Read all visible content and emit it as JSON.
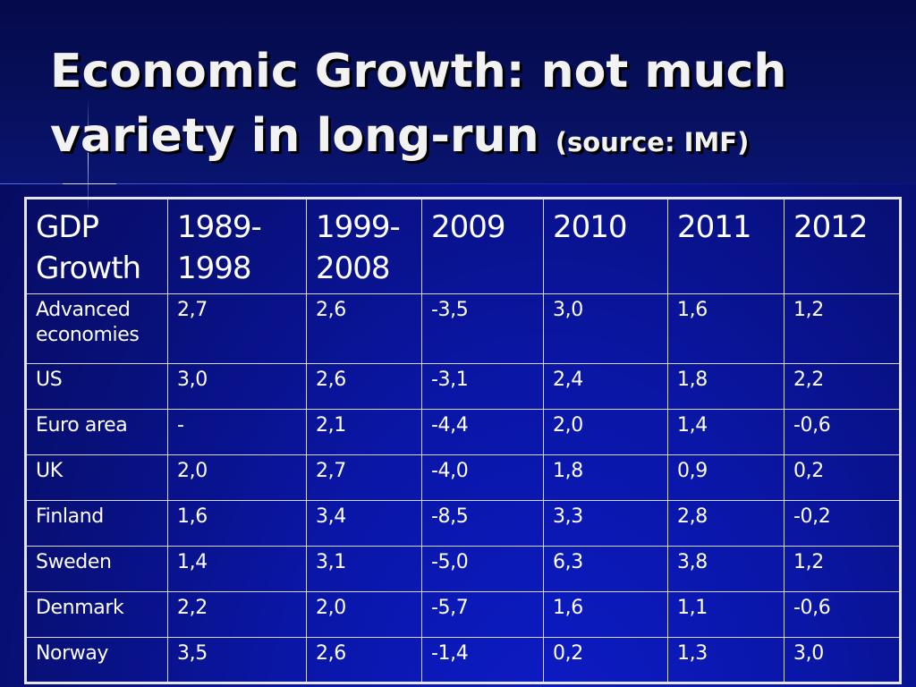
{
  "slide": {
    "title_main": "Economic Growth: not much variety in long-run",
    "title_source": "(source: IMF)"
  },
  "table": {
    "headers": [
      "GDP Growth",
      "1989-1998",
      "1999-2008",
      "2009",
      "2010",
      "2011",
      "2012"
    ],
    "rows": [
      {
        "label": "Advanced economies",
        "values": [
          "2,7",
          "2,6",
          "-3,5",
          "3,0",
          "1,6",
          "1,2"
        ]
      },
      {
        "label": "US",
        "values": [
          "3,0",
          "2,6",
          "-3,1",
          "2,4",
          "1,8",
          "2,2"
        ]
      },
      {
        "label": "Euro area",
        "values": [
          "-",
          "2,1",
          "-4,4",
          "2,0",
          "1,4",
          "-0,6"
        ]
      },
      {
        "label": "UK",
        "values": [
          "2,0",
          "2,7",
          "-4,0",
          "1,8",
          "0,9",
          "0,2"
        ]
      },
      {
        "label": "Finland",
        "values": [
          "1,6",
          "3,4",
          "-8,5",
          "3,3",
          "2,8",
          "-0,2"
        ]
      },
      {
        "label": "Sweden",
        "values": [
          "1,4",
          "3,1",
          "-5,0",
          "6,3",
          "3,8",
          "1,2"
        ]
      },
      {
        "label": "Denmark",
        "values": [
          "2,2",
          "2,0",
          "-5,7",
          "1,6",
          "1,1",
          "-0,6"
        ]
      },
      {
        "label": "Norway",
        "values": [
          "3,5",
          "2,6",
          "-1,4",
          "0,2",
          "1,3",
          "3,0"
        ]
      }
    ]
  },
  "colors": {
    "background": "#0a16a6",
    "text": "#ffffff",
    "title_text": "#f2f2f2",
    "grid": "#d8d8d8"
  }
}
